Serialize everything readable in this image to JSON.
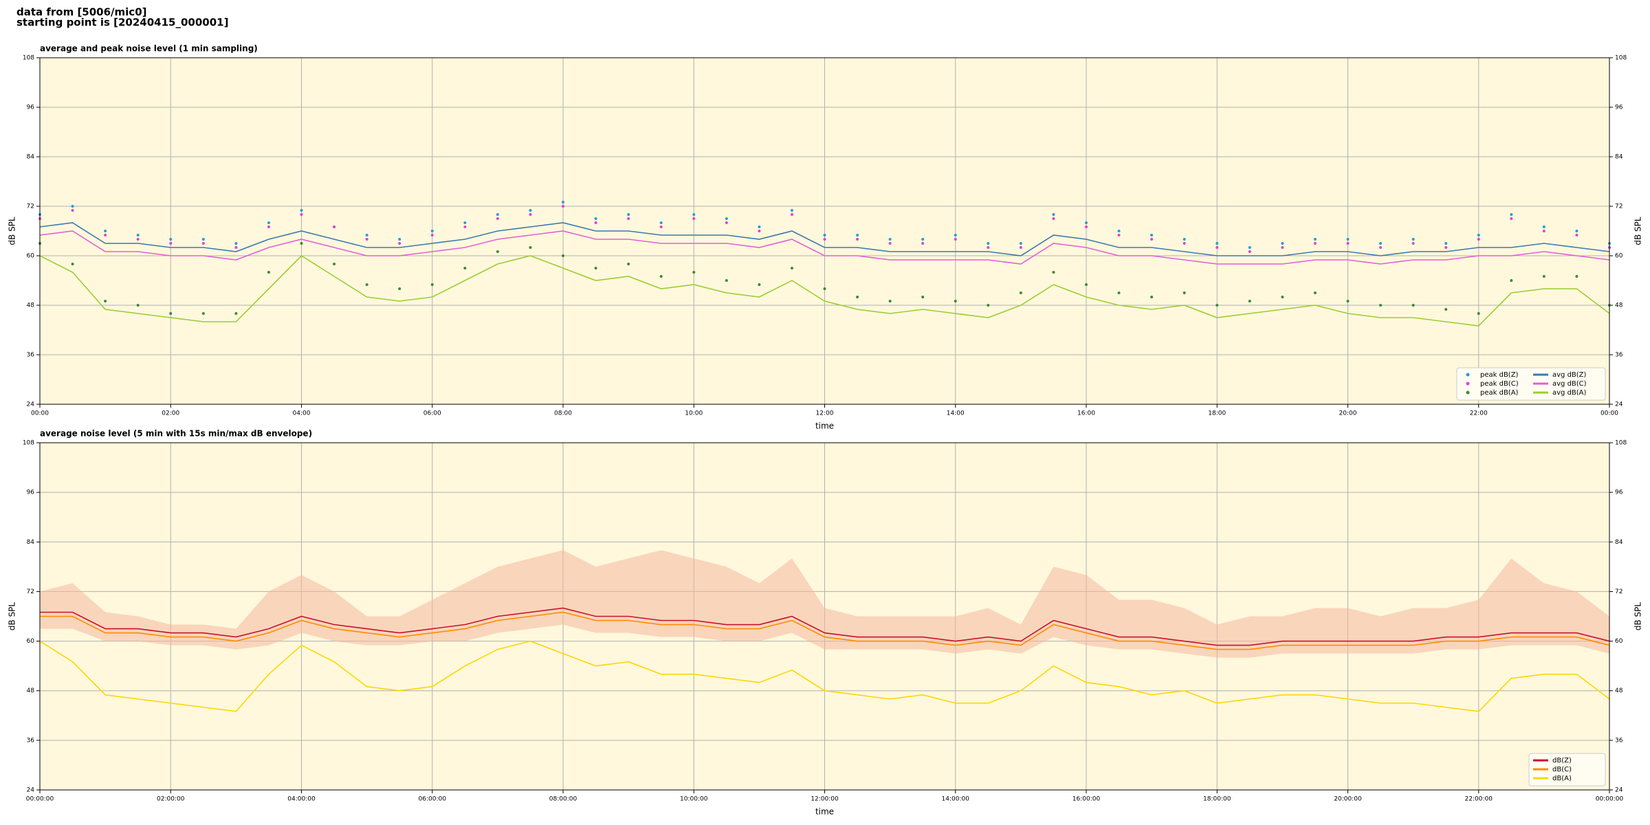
{
  "header_lines": [
    "data from [5006/mic0]",
    "starting point is [20240415_000001]"
  ],
  "chart_data": [
    {
      "type": "line",
      "title": "average and peak noise level (1 min sampling)",
      "xlabel": "time",
      "ylabel": "dB SPL",
      "xlim": [
        0,
        24
      ],
      "ylim": [
        24,
        108
      ],
      "yticks": [
        24,
        36,
        48,
        60,
        72,
        84,
        96,
        108
      ],
      "xticks": [
        {
          "value": 0,
          "label": "00:00"
        },
        {
          "value": 2,
          "label": "02:00"
        },
        {
          "value": 4,
          "label": "04:00"
        },
        {
          "value": 6,
          "label": "06:00"
        },
        {
          "value": 8,
          "label": "08:00"
        },
        {
          "value": 10,
          "label": "10:00"
        },
        {
          "value": 12,
          "label": "12:00"
        },
        {
          "value": 14,
          "label": "14:00"
        },
        {
          "value": 16,
          "label": "16:00"
        },
        {
          "value": 18,
          "label": "18:00"
        },
        {
          "value": 20,
          "label": "20:00"
        },
        {
          "value": 22,
          "label": "22:00"
        },
        {
          "value": 24,
          "label": "00:00"
        }
      ],
      "grid": true,
      "legend": "lower right",
      "background": "#fff8dc",
      "x": [
        0,
        0.5,
        1,
        1.5,
        2,
        2.5,
        3,
        3.5,
        4,
        4.5,
        5,
        5.5,
        6,
        6.5,
        7,
        7.5,
        8,
        8.5,
        9,
        9.5,
        10,
        10.5,
        11,
        11.5,
        12,
        12.5,
        13,
        13.5,
        14,
        14.5,
        15,
        15.5,
        16,
        16.5,
        17,
        17.5,
        18,
        18.5,
        19,
        19.5,
        20,
        20.5,
        21,
        21.5,
        22,
        22.5,
        23,
        23.5,
        24
      ],
      "series": [
        {
          "name": "peak dB(Z)",
          "kind": "scatter",
          "color": "#1f9fe0",
          "values": [
            70,
            72,
            66,
            65,
            64,
            64,
            63,
            68,
            71,
            67,
            65,
            64,
            66,
            68,
            70,
            71,
            73,
            69,
            70,
            68,
            70,
            69,
            67,
            71,
            65,
            65,
            64,
            64,
            65,
            63,
            63,
            70,
            68,
            66,
            65,
            64,
            63,
            62,
            63,
            64,
            64,
            63,
            64,
            63,
            65,
            70,
            67,
            66,
            63
          ]
        },
        {
          "name": "peak dB(C)",
          "kind": "scatter",
          "color": "#e040e0",
          "values": [
            69,
            71,
            65,
            64,
            63,
            63,
            62,
            67,
            70,
            67,
            64,
            63,
            65,
            67,
            69,
            70,
            72,
            68,
            69,
            67,
            69,
            68,
            66,
            70,
            64,
            64,
            63,
            63,
            64,
            62,
            62,
            69,
            67,
            65,
            64,
            63,
            62,
            61,
            62,
            63,
            63,
            62,
            63,
            62,
            64,
            69,
            66,
            65,
            62
          ]
        },
        {
          "name": "peak dB(A)",
          "kind": "scatter",
          "color": "#3a8a3a",
          "values": [
            63,
            58,
            49,
            48,
            46,
            46,
            46,
            56,
            63,
            58,
            53,
            52,
            53,
            57,
            61,
            62,
            60,
            57,
            58,
            55,
            56,
            54,
            53,
            57,
            52,
            50,
            49,
            50,
            49,
            48,
            51,
            56,
            53,
            51,
            50,
            51,
            48,
            49,
            50,
            51,
            49,
            48,
            48,
            47,
            46,
            54,
            55,
            55,
            48
          ]
        },
        {
          "name": "avg dB(Z)",
          "kind": "line",
          "color": "#3a78b0",
          "values": [
            67,
            68,
            63,
            63,
            62,
            62,
            61,
            64,
            66,
            64,
            62,
            62,
            63,
            64,
            66,
            67,
            68,
            66,
            66,
            65,
            65,
            65,
            64,
            66,
            62,
            62,
            61,
            61,
            61,
            61,
            60,
            65,
            64,
            62,
            62,
            61,
            60,
            60,
            60,
            61,
            61,
            60,
            61,
            61,
            62,
            62,
            63,
            62,
            61
          ]
        },
        {
          "name": "avg dB(C)",
          "kind": "line",
          "color": "#e060d8",
          "values": [
            65,
            66,
            61,
            61,
            60,
            60,
            59,
            62,
            64,
            62,
            60,
            60,
            61,
            62,
            64,
            65,
            66,
            64,
            64,
            63,
            63,
            63,
            62,
            64,
            60,
            60,
            59,
            59,
            59,
            59,
            58,
            63,
            62,
            60,
            60,
            59,
            58,
            58,
            58,
            59,
            59,
            58,
            59,
            59,
            60,
            60,
            61,
            60,
            59
          ]
        },
        {
          "name": "avg dB(A)",
          "kind": "line",
          "color": "#9acd32",
          "values": [
            60,
            56,
            47,
            46,
            45,
            44,
            44,
            52,
            60,
            55,
            50,
            49,
            50,
            54,
            58,
            60,
            57,
            54,
            55,
            52,
            53,
            51,
            50,
            54,
            49,
            47,
            46,
            47,
            46,
            45,
            48,
            53,
            50,
            48,
            47,
            48,
            45,
            46,
            47,
            48,
            46,
            45,
            45,
            44,
            43,
            51,
            52,
            52,
            46
          ]
        }
      ]
    },
    {
      "type": "line",
      "title": "average noise level (5 min with 15s min/max dB envelope)",
      "xlabel": "time",
      "ylabel": "dB SPL",
      "xlim": [
        0,
        24
      ],
      "ylim": [
        24,
        108
      ],
      "yticks": [
        24,
        36,
        48,
        60,
        72,
        84,
        96,
        108
      ],
      "xticks": [
        {
          "value": 0,
          "label": "00:00:00"
        },
        {
          "value": 2,
          "label": "02:00:00"
        },
        {
          "value": 4,
          "label": "04:00:00"
        },
        {
          "value": 6,
          "label": "06:00:00"
        },
        {
          "value": 8,
          "label": "08:00:00"
        },
        {
          "value": 10,
          "label": "10:00:00"
        },
        {
          "value": 12,
          "label": "12:00:00"
        },
        {
          "value": 14,
          "label": "14:00:00"
        },
        {
          "value": 16,
          "label": "16:00:00"
        },
        {
          "value": 18,
          "label": "18:00:00"
        },
        {
          "value": 20,
          "label": "20:00:00"
        },
        {
          "value": 22,
          "label": "22:00:00"
        },
        {
          "value": 24,
          "label": "00:00:00"
        }
      ],
      "grid": true,
      "legend": "lower right",
      "background": "#fff8dc",
      "x": [
        0,
        0.5,
        1,
        1.5,
        2,
        2.5,
        3,
        3.5,
        4,
        4.5,
        5,
        5.5,
        6,
        6.5,
        7,
        7.5,
        8,
        8.5,
        9,
        9.5,
        10,
        10.5,
        11,
        11.5,
        12,
        12.5,
        13,
        13.5,
        14,
        14.5,
        15,
        15.5,
        16,
        16.5,
        17,
        17.5,
        18,
        18.5,
        19,
        19.5,
        20,
        20.5,
        21,
        21.5,
        22,
        22.5,
        23,
        23.5,
        24
      ],
      "envelope": {
        "color": "#f4b8a0",
        "upper": [
          72,
          74,
          67,
          66,
          64,
          64,
          63,
          72,
          76,
          72,
          66,
          66,
          70,
          74,
          78,
          80,
          82,
          78,
          80,
          82,
          80,
          78,
          74,
          80,
          68,
          66,
          66,
          66,
          66,
          68,
          64,
          78,
          76,
          70,
          70,
          68,
          64,
          66,
          66,
          68,
          68,
          66,
          68,
          68,
          70,
          80,
          74,
          72,
          66
        ],
        "lower": [
          63,
          63,
          60,
          60,
          59,
          59,
          58,
          59,
          62,
          60,
          59,
          59,
          60,
          60,
          62,
          63,
          64,
          62,
          62,
          61,
          61,
          60,
          60,
          62,
          58,
          58,
          58,
          58,
          57,
          58,
          57,
          61,
          59,
          58,
          58,
          57,
          56,
          56,
          57,
          57,
          57,
          57,
          57,
          58,
          58,
          59,
          59,
          59,
          57
        ]
      },
      "series": [
        {
          "name": "dB(Z)",
          "kind": "line",
          "color": "#c8102e",
          "values": [
            67,
            67,
            63,
            63,
            62,
            62,
            61,
            63,
            66,
            64,
            63,
            62,
            63,
            64,
            66,
            67,
            68,
            66,
            66,
            65,
            65,
            64,
            64,
            66,
            62,
            61,
            61,
            61,
            60,
            61,
            60,
            65,
            63,
            61,
            61,
            60,
            59,
            59,
            60,
            60,
            60,
            60,
            60,
            61,
            61,
            62,
            62,
            62,
            60
          ]
        },
        {
          "name": "dB(C)",
          "kind": "line",
          "color": "#ff8c00",
          "values": [
            66,
            66,
            62,
            62,
            61,
            61,
            60,
            62,
            65,
            63,
            62,
            61,
            62,
            63,
            65,
            66,
            67,
            65,
            65,
            64,
            64,
            63,
            63,
            65,
            61,
            60,
            60,
            60,
            59,
            60,
            59,
            64,
            62,
            60,
            60,
            59,
            58,
            58,
            59,
            59,
            59,
            59,
            59,
            60,
            60,
            61,
            61,
            61,
            59
          ]
        },
        {
          "name": "dB(A)",
          "kind": "line",
          "color": "#ffd700",
          "values": [
            60,
            55,
            47,
            46,
            45,
            44,
            43,
            52,
            59,
            55,
            49,
            48,
            49,
            54,
            58,
            60,
            57,
            54,
            55,
            52,
            52,
            51,
            50,
            53,
            48,
            47,
            46,
            47,
            45,
            45,
            48,
            54,
            50,
            49,
            47,
            48,
            45,
            46,
            47,
            47,
            46,
            45,
            45,
            44,
            43,
            51,
            52,
            52,
            46
          ]
        }
      ]
    }
  ]
}
